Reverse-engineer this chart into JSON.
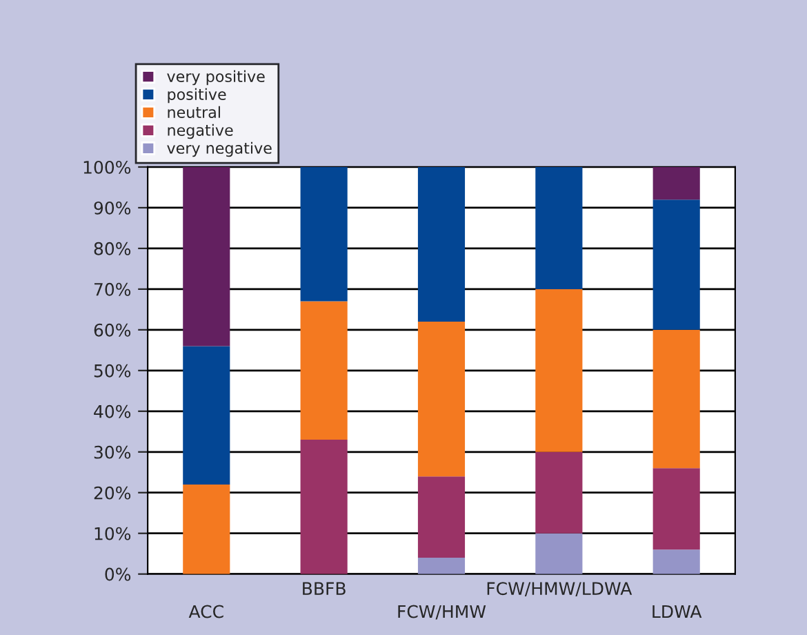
{
  "chart_data": {
    "type": "bar",
    "stacked": true,
    "categories": [
      "ACC",
      "BBFB",
      "FCW/HMW",
      "FCW/HMW/LDWA",
      "LDWA"
    ],
    "series": [
      {
        "name": "very negative",
        "color": "#9595c8",
        "values": [
          0,
          0,
          4,
          10,
          6
        ]
      },
      {
        "name": "negative",
        "color": "#9a3366",
        "values": [
          0,
          33,
          20,
          20,
          20
        ]
      },
      {
        "name": "neutral",
        "color": "#f47920",
        "values": [
          22,
          34,
          38,
          40,
          34
        ]
      },
      {
        "name": "positive",
        "color": "#034694",
        "values": [
          34,
          33,
          38,
          30,
          32
        ]
      },
      {
        "name": "very positive",
        "color": "#632060",
        "values": [
          44,
          0,
          0,
          0,
          8
        ]
      }
    ],
    "ylim": [
      0,
      100
    ],
    "yticks": [
      {
        "value": 0,
        "label": "0%"
      },
      {
        "value": 10,
        "label": "10%"
      },
      {
        "value": 20,
        "label": "20%"
      },
      {
        "value": 30,
        "label": "30%"
      },
      {
        "value": 40,
        "label": "40%"
      },
      {
        "value": 50,
        "label": "50%"
      },
      {
        "value": 60,
        "label": "60%"
      },
      {
        "value": 70,
        "label": "70%"
      },
      {
        "value": 80,
        "label": "80%"
      },
      {
        "value": 90,
        "label": "90%"
      },
      {
        "value": 100,
        "label": "100%"
      }
    ],
    "grid": "y",
    "legend": "top left"
  }
}
